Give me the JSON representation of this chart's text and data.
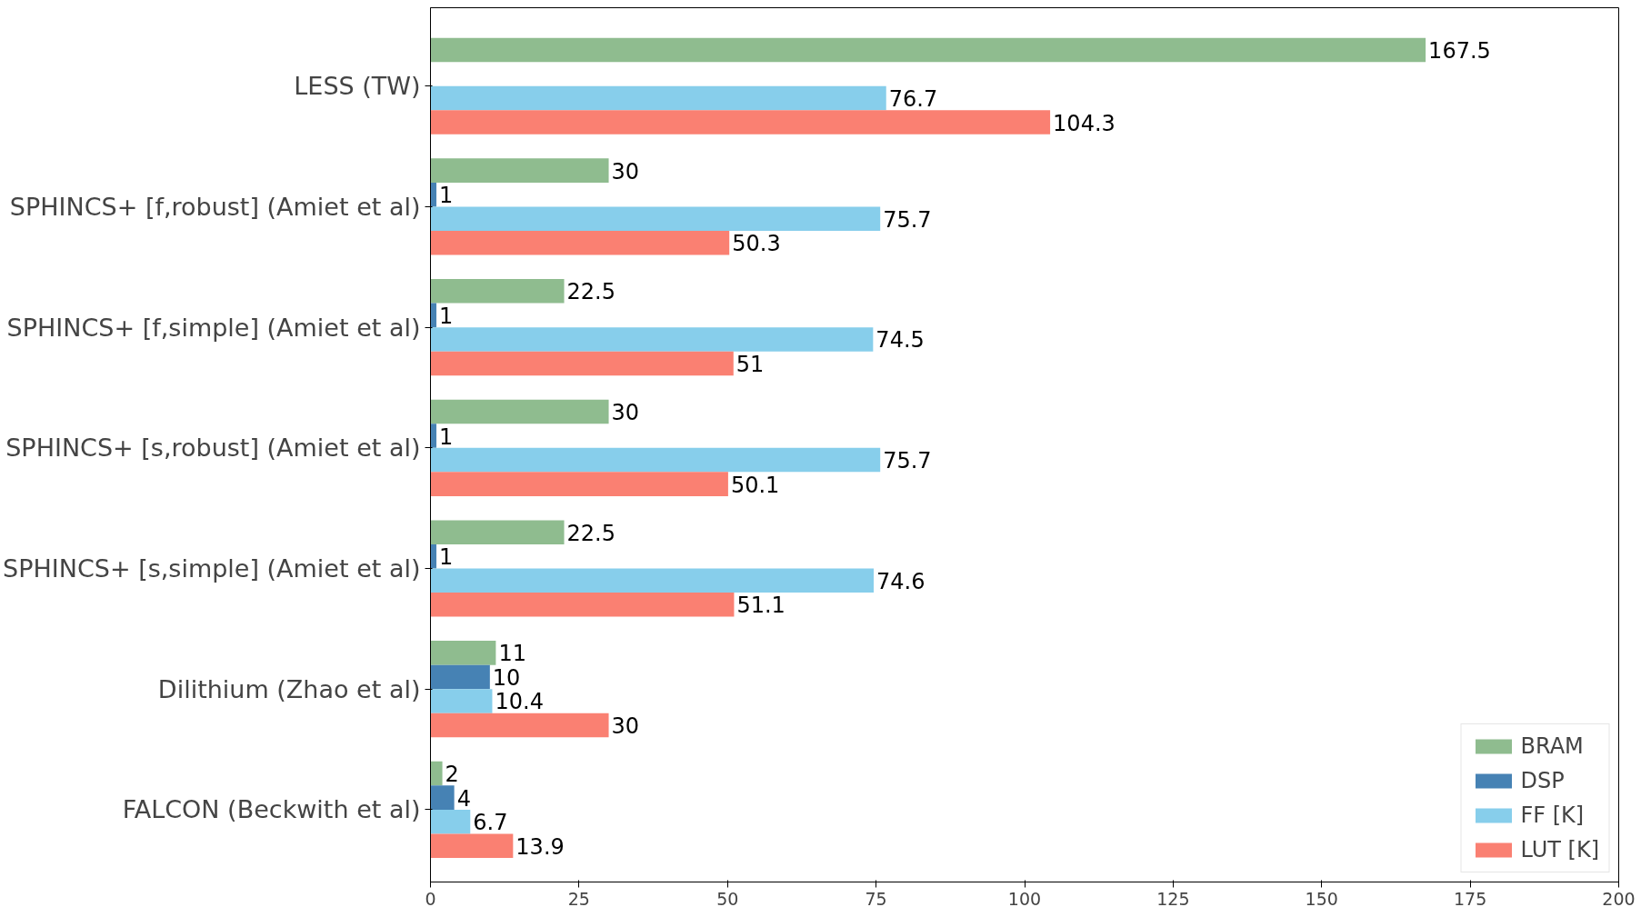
{
  "chart_data": {
    "type": "bar",
    "orientation": "horizontal",
    "categories": [
      "LESS (TW)",
      "SPHINCS+ [f,robust] (Amiet et al)",
      "SPHINCS+ [f,simple] (Amiet et al)",
      "SPHINCS+ [s,robust] (Amiet et al)",
      "SPHINCS+ [s,simple] (Amiet et al)",
      "Dilithium (Zhao et al)",
      "FALCON (Beckwith et al)"
    ],
    "series": [
      {
        "name": "BRAM",
        "color": "#8fbc8f",
        "values": [
          167.5,
          30,
          22.5,
          30,
          22.5,
          11,
          2
        ]
      },
      {
        "name": "DSP",
        "color": "#4682b4",
        "values": [
          null,
          1,
          1,
          1,
          1,
          10,
          4
        ]
      },
      {
        "name": "FF [K]",
        "color": "#87ceeb",
        "values": [
          76.7,
          75.7,
          74.5,
          75.7,
          74.6,
          10.4,
          6.7
        ]
      },
      {
        "name": "LUT [K]",
        "color": "#fa8072",
        "values": [
          104.3,
          50.3,
          51,
          50.1,
          51.1,
          30,
          13.9
        ]
      }
    ],
    "xlim": [
      0,
      200
    ],
    "xticks": [
      0,
      25,
      50,
      75,
      100,
      125,
      150,
      175,
      200
    ],
    "grid": false,
    "legend": "bottom right",
    "data_labels": true
  }
}
